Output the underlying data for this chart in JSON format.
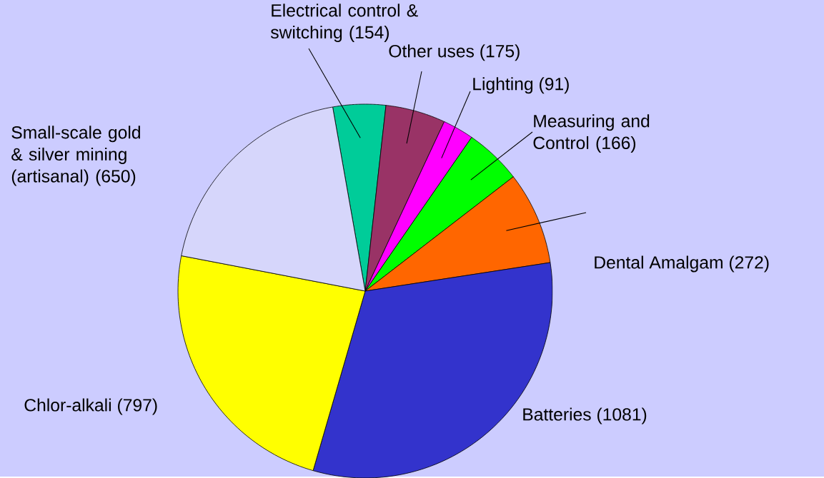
{
  "chart_data": {
    "type": "pie",
    "categories": [
      "Electrical control & switching",
      "Other uses",
      "Lighting",
      "Measuring and Control",
      "Dental Amalgam",
      "Batteries",
      "Chlor-alkali",
      "Small-scale gold & silver mining (artisanal)"
    ],
    "values": [
      154,
      175,
      91,
      166,
      272,
      1081,
      797,
      650
    ],
    "value_labels": [
      "(154)",
      "(175)",
      "(91)",
      "(166)",
      "(272)",
      "(1081)",
      "(797)",
      "(650)"
    ],
    "colors": [
      "#00cc99",
      "#993366",
      "#ff00ff",
      "#00ff00",
      "#ff6600",
      "#3333cc",
      "#ffff00",
      "#d6d6fb"
    ]
  }
}
